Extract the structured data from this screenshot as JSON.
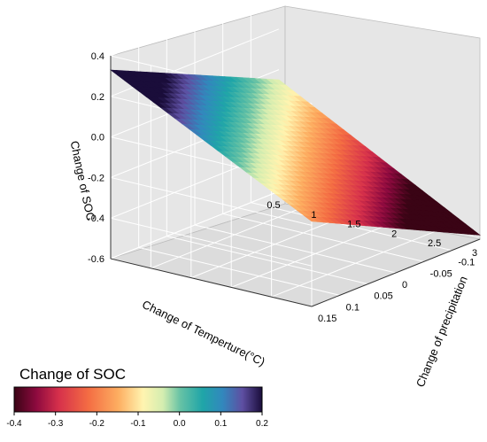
{
  "chart_data": {
    "type": "surface3d",
    "title": "",
    "x_axis": {
      "label": "Change of Temperture(°C)",
      "range": [
        0.5,
        3
      ],
      "ticks": [
        "0.5",
        "1",
        "1.5",
        "2",
        "2.5",
        "3"
      ]
    },
    "y_axis": {
      "label": "Change of precipitation",
      "range": [
        -0.15,
        0.15
      ],
      "ticks": [
        "0.15",
        "0.1",
        "0.05",
        "0",
        "-0.05",
        "-0.1"
      ]
    },
    "z_axis": {
      "label": "Change of SOC",
      "range": [
        -0.6,
        0.4
      ],
      "ticks": [
        "0.4",
        "0.2",
        "0.0",
        "-0.2",
        "-0.4",
        "-0.6"
      ]
    },
    "corner_values": [
      {
        "temperature": 0.5,
        "precipitation": 0.15,
        "soc": 0.33
      },
      {
        "temperature": 0.5,
        "precipitation": -0.15,
        "soc": -0.05
      },
      {
        "temperature": 3,
        "precipitation": 0.15,
        "soc": -0.18
      },
      {
        "temperature": 3,
        "precipitation": -0.15,
        "soc": -0.58
      }
    ],
    "colorbar": {
      "title": "Change of SOC",
      "range": [
        -0.4,
        0.2
      ],
      "ticks": [
        "-0.4",
        "-0.3",
        "-0.2",
        "-0.1",
        "0.0",
        "0.1",
        "0.2"
      ]
    },
    "grid": true
  }
}
